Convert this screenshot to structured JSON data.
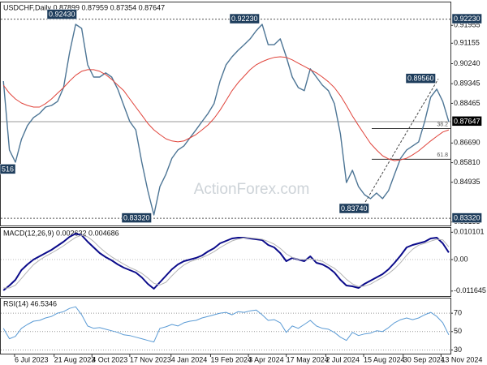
{
  "chart_data": [
    {
      "type": "line",
      "title": "USDCHF,Daily  0.87899 0.87959 0.87354 0.87647",
      "watermark": "ActionForex.com",
      "x": [
        "2023-06-23",
        "2023-06-30",
        "2023-07-07",
        "2023-07-14",
        "2023-07-21",
        "2023-07-28",
        "2023-08-04",
        "2023-08-11",
        "2023-08-18",
        "2023-08-25",
        "2023-09-01",
        "2023-09-08",
        "2023-09-15",
        "2023-09-22",
        "2023-09-29",
        "2023-10-06",
        "2023-10-13",
        "2023-10-20",
        "2023-10-27",
        "2023-11-03",
        "2023-11-10",
        "2023-11-17",
        "2023-11-24",
        "2023-12-01",
        "2023-12-08",
        "2023-12-15",
        "2023-12-22",
        "2023-12-29",
        "2024-01-05",
        "2024-01-12",
        "2024-01-19",
        "2024-01-26",
        "2024-02-02",
        "2024-02-09",
        "2024-02-16",
        "2024-02-23",
        "2024-03-01",
        "2024-03-08",
        "2024-03-15",
        "2024-03-22",
        "2024-03-29",
        "2024-04-05",
        "2024-04-12",
        "2024-04-19",
        "2024-04-26",
        "2024-05-03",
        "2024-05-10",
        "2024-05-17",
        "2024-05-24",
        "2024-05-31",
        "2024-06-07",
        "2024-06-14",
        "2024-06-21",
        "2024-06-28",
        "2024-07-05",
        "2024-07-12",
        "2024-07-19",
        "2024-07-26",
        "2024-08-02",
        "2024-08-09",
        "2024-08-16",
        "2024-08-23",
        "2024-08-30",
        "2024-09-06",
        "2024-09-13",
        "2024-09-20",
        "2024-09-27",
        "2024-10-04",
        "2024-10-11",
        "2024-10-18",
        "2024-10-25",
        "2024-11-01",
        "2024-11-08",
        "2024-11-15",
        "2024-11-22"
      ],
      "xlim": [
        "2023-06-20",
        "2024-11-24"
      ],
      "xticks": [
        {
          "value": "2023-07-06",
          "label": "6 Jul 2023"
        },
        {
          "value": "2023-08-21",
          "label": "21 Aug 2023"
        },
        {
          "value": "2023-10-04",
          "label": "4 Oct 2023"
        },
        {
          "value": "2023-11-17",
          "label": "17 Nov 2023"
        },
        {
          "value": "2024-01-04",
          "label": "4 Jan 2024"
        },
        {
          "value": "2024-02-19",
          "label": "19 Feb 2024"
        },
        {
          "value": "2024-04-03",
          "label": "3 Apr 2024"
        },
        {
          "value": "2024-05-17",
          "label": "17 May 2024"
        },
        {
          "value": "2024-07-02",
          "label": "2 Jul 2024"
        },
        {
          "value": "2024-08-15",
          "label": "15 Aug 2024"
        },
        {
          "value": "2024-09-30",
          "label": "30 Sep 2024"
        },
        {
          "value": "2024-11-13",
          "label": "13 Nov 2024"
        }
      ],
      "ylim": [
        0.83,
        0.9298
      ],
      "yticks": [
        {
          "value": 0.91955,
          "label": "0.91955"
        },
        {
          "value": 0.91155,
          "label": "0.91155"
        },
        {
          "value": 0.9024,
          "label": "0.90240"
        },
        {
          "value": 0.89345,
          "label": "0.89345"
        },
        {
          "value": 0.88465,
          "label": "0.88465"
        },
        {
          "value": 0.8669,
          "label": "0.86690"
        },
        {
          "value": 0.8581,
          "label": "0.85810"
        },
        {
          "value": 0.84935,
          "label": "0.84935"
        },
        {
          "value": 0.83155,
          "label": "0.83155"
        }
      ],
      "series": [
        {
          "color": "#4d7595",
          "values": [
            0.8946,
            0.8638,
            0.8583,
            0.8685,
            0.8747,
            0.8783,
            0.8801,
            0.883,
            0.8837,
            0.8855,
            0.8917,
            0.9073,
            0.92,
            0.9182,
            0.9019,
            0.8964,
            0.8964,
            0.8983,
            0.8964,
            0.891,
            0.8837,
            0.8765,
            0.8728,
            0.8583,
            0.8456,
            0.8347,
            0.8474,
            0.8529,
            0.8601,
            0.8638,
            0.8656,
            0.8692,
            0.8728,
            0.8765,
            0.8801,
            0.8845,
            0.8946,
            0.9019,
            0.9055,
            0.9084,
            0.9109,
            0.9135,
            0.9171,
            0.92,
            0.9109,
            0.9109,
            0.9135,
            0.9055,
            0.8964,
            0.8917,
            0.8903,
            0.9001,
            0.8964,
            0.8928,
            0.8903,
            0.8845,
            0.871,
            0.8492,
            0.8547,
            0.8474,
            0.8438,
            0.842,
            0.8445,
            0.842,
            0.8456,
            0.8529,
            0.8601,
            0.8638,
            0.8656,
            0.8674,
            0.8765,
            0.8874,
            0.891,
            0.8855,
            0.8765
          ]
        },
        {
          "color": "#e0433a",
          "values": [
            0.8928,
            0.8892,
            0.8866,
            0.8848,
            0.8837,
            0.883,
            0.883,
            0.8845,
            0.8866,
            0.8892,
            0.8917,
            0.8946,
            0.8972,
            0.899,
            0.8997,
            0.8997,
            0.899,
            0.8975,
            0.8954,
            0.8928,
            0.8903,
            0.8866,
            0.883,
            0.8794,
            0.8757,
            0.8728,
            0.8707,
            0.8688,
            0.8678,
            0.8674,
            0.8678,
            0.8692,
            0.8707,
            0.8728,
            0.875,
            0.8779,
            0.8816,
            0.8859,
            0.8903,
            0.8939,
            0.8968,
            0.8997,
            0.9019,
            0.9033,
            0.9044,
            0.9052,
            0.9055,
            0.9052,
            0.9041,
            0.9026,
            0.9012,
            0.8997,
            0.8983,
            0.8964,
            0.8943,
            0.8917,
            0.8881,
            0.8837,
            0.879,
            0.8747,
            0.8707,
            0.8667,
            0.8638,
            0.8612,
            0.8598,
            0.859,
            0.8594,
            0.8601,
            0.8616,
            0.8634,
            0.8656,
            0.8678,
            0.8699,
            0.8718,
            0.8728
          ]
        }
      ],
      "price_markers": [
        {
          "value": 0.9223,
          "label": "0.92230"
        },
        {
          "value": 0.87647,
          "label": "0.87647"
        },
        {
          "value": 0.8332,
          "label": "0.83320"
        }
      ],
      "annotations": [
        {
          "value": 0.9243,
          "label": "0.92430"
        },
        {
          "value": 0.9223,
          "label": "0.92230"
        },
        {
          "value": 0.8332,
          "label": "0.83320"
        },
        {
          "value": 0.8374,
          "label": "0.83740"
        },
        {
          "value": 0.8956,
          "label": "0.89560"
        },
        {
          "label": "516"
        }
      ],
      "fib_levels": [
        38.2,
        61.8
      ]
    },
    {
      "type": "line",
      "title": "MACD(12,26,9) 0.002632 0.004686",
      "ylim": [
        -0.0135,
        0.0117
      ],
      "yticks": [
        0.010101,
        {
          "value": 0,
          "label": "0.00"
        },
        -0.011645
      ],
      "series": [
        {
          "color": "#0b0b8a",
          "values": [
            -0.0114,
            -0.0096,
            -0.0075,
            -0.0039,
            -0.0018,
            0,
            0.0012,
            0.0024,
            0.0036,
            0.0051,
            0.0066,
            0.0084,
            0.0096,
            0.009,
            0.0066,
            0.0045,
            0.0024,
            0.0009,
            -0.0003,
            -0.0018,
            -0.003,
            -0.0039,
            -0.0048,
            -0.0066,
            -0.009,
            -0.0108,
            -0.0084,
            -0.006,
            -0.0036,
            -0.0018,
            -0.0006,
            0,
            0.0006,
            0.0015,
            0.003,
            0.0042,
            0.006,
            0.0069,
            0.0078,
            0.0081,
            0.0081,
            0.0078,
            0.0075,
            0.0072,
            0.0054,
            0.0045,
            0.0024,
            -0.0006,
            0.0006,
            0,
            -0.0006,
            0.0012,
            -0.0012,
            -0.0018,
            -0.003,
            -0.0048,
            -0.0075,
            -0.0096,
            -0.0099,
            -0.0105,
            -0.009,
            -0.0078,
            -0.0066,
            -0.0054,
            -0.0036,
            -0.0012,
            0.0015,
            0.0045,
            0.0054,
            0.006,
            0.0066,
            0.0078,
            0.0081,
            0.006,
            0.0026
          ]
        },
        {
          "color": "#b4b4b4",
          "values": [
            -0.0105,
            -0.0105,
            -0.0095,
            -0.007,
            -0.0044,
            -0.0019,
            -0.0002,
            0.0012,
            0.0024,
            0.0037,
            0.0051,
            0.0067,
            0.0082,
            0.009,
            0.0084,
            0.0067,
            0.0045,
            0.0026,
            0.001,
            -0.0004,
            -0.0017,
            -0.0029,
            -0.0039,
            -0.0051,
            -0.0068,
            -0.0088,
            -0.0094,
            -0.0084,
            -0.006,
            -0.0038,
            -0.002,
            -0.0008,
            0,
            0.0007,
            0.0017,
            0.0029,
            0.0044,
            0.0057,
            0.0069,
            0.0076,
            0.008,
            0.008,
            0.0078,
            0.0075,
            0.0067,
            0.0057,
            0.0041,
            0.0021,
            0.0008,
            0,
            0,
            0.0002,
            -0.0002,
            -0.0006,
            -0.002,
            -0.0032,
            -0.0051,
            -0.0073,
            -0.009,
            -0.01,
            -0.0098,
            -0.0091,
            -0.0078,
            -0.0066,
            -0.0052,
            -0.0034,
            -0.0011,
            0.0016,
            0.0038,
            0.0053,
            0.006,
            0.0068,
            0.0075,
            0.0073,
            0.0047
          ]
        }
      ]
    },
    {
      "type": "line",
      "title": "RSI(14) 46.5346",
      "ylim": [
        26,
        86
      ],
      "yticks": [
        70,
        50,
        30
      ],
      "series": [
        {
          "color": "#5b9bd5",
          "values": [
            53.5,
            42.2,
            44.8,
            53.5,
            57.8,
            61.3,
            62.2,
            64.8,
            66.5,
            70.0,
            71.7,
            75.2,
            77.0,
            68.3,
            56.1,
            53.5,
            54.3,
            52.6,
            50.9,
            49.1,
            46.5,
            45.7,
            43.9,
            42.2,
            40.4,
            38.7,
            53.5,
            55.2,
            57.8,
            56.1,
            59.6,
            61.3,
            62.2,
            64.8,
            66.5,
            68.3,
            70.0,
            70.9,
            68.3,
            71.7,
            70.9,
            72.6,
            73.5,
            68.3,
            62.2,
            63.0,
            59.6,
            49.1,
            56.1,
            53.5,
            57.8,
            62.2,
            56.1,
            53.5,
            52.6,
            49.1,
            43.9,
            40.4,
            49.1,
            45.7,
            47.4,
            48.3,
            50.9,
            50.0,
            54.3,
            59.6,
            63.0,
            64.8,
            63.0,
            64.8,
            68.3,
            70.9,
            66.5,
            59.6,
            46.5
          ]
        }
      ]
    }
  ]
}
